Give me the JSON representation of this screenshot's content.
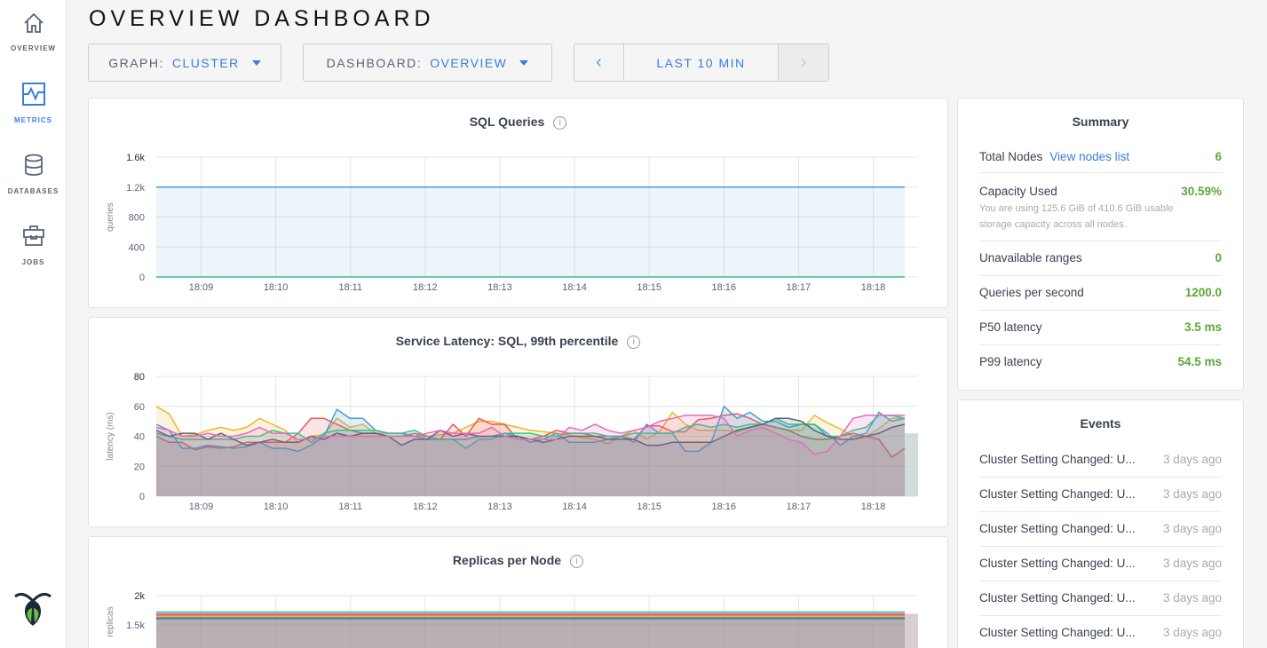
{
  "sidebar": {
    "items": [
      {
        "label": "OVERVIEW",
        "icon": "home-icon",
        "active": false
      },
      {
        "label": "METRICS",
        "icon": "metrics-icon",
        "active": true
      },
      {
        "label": "DATABASES",
        "icon": "database-icon",
        "active": false
      },
      {
        "label": "JOBS",
        "icon": "briefcase-icon",
        "active": false
      }
    ],
    "logo": "cockroach-logo"
  },
  "header": {
    "title": "OVERVIEW DASHBOARD"
  },
  "controls": {
    "graph_label": "GRAPH:",
    "graph_value": "CLUSTER",
    "dashboard_label": "DASHBOARD:",
    "dashboard_value": "OVERVIEW",
    "time_prev": "‹",
    "time_range": "LAST 10 MIN",
    "time_next": "›"
  },
  "colors": {
    "accent": "#3a7de1",
    "positive": "#5ba83a",
    "series": [
      "#f0b429",
      "#e8595a",
      "#4a9bd9",
      "#34c38f",
      "#5b6378",
      "#e56bbd"
    ]
  },
  "chart_data": [
    {
      "type": "area",
      "title": "SQL Queries",
      "ylabel": "queries",
      "yticks": [
        "0",
        "400",
        "800",
        "1.2k",
        "1.6k"
      ],
      "ylim": [
        0,
        1600
      ],
      "xticks": [
        "18:09",
        "18:10",
        "18:11",
        "18:12",
        "18:13",
        "18:14",
        "18:15",
        "18:16",
        "18:17",
        "18:18"
      ],
      "xlim": [
        "18:08:24",
        "18:18:36"
      ],
      "grid": true,
      "series": [
        {
          "color": "#4a9bd9",
          "values": [
            1200,
            1200
          ]
        },
        {
          "color": "#34c38f",
          "values": [
            0,
            0
          ]
        }
      ]
    },
    {
      "type": "line",
      "title": "Service Latency: SQL, 99th percentile",
      "ylabel": "latency (ms)",
      "yticks": [
        "0",
        "20",
        "40",
        "60",
        "80"
      ],
      "ylim": [
        0,
        80
      ],
      "xticks": [
        "18:09",
        "18:10",
        "18:11",
        "18:12",
        "18:13",
        "18:14",
        "18:15",
        "18:16",
        "18:17",
        "18:18"
      ],
      "xlim": [
        "18:08:24",
        "18:18:36"
      ],
      "grid": true,
      "series": [
        {
          "color": "#f0b429",
          "values": [
            60,
            55,
            40,
            41,
            44,
            46,
            44,
            46,
            52,
            48,
            44,
            36,
            40,
            41,
            52,
            46,
            48,
            42,
            42,
            42,
            40,
            40,
            41,
            42,
            46,
            50,
            50,
            48,
            46,
            44,
            43,
            42,
            41,
            39,
            38,
            35,
            40,
            44,
            38,
            43,
            56,
            48,
            44,
            44,
            44,
            43,
            46,
            48,
            46,
            44,
            44,
            54,
            49,
            45,
            40,
            40,
            45,
            52,
            52
          ]
        },
        {
          "color": "#e8595a",
          "values": [
            40,
            36,
            36,
            31,
            33,
            32,
            33,
            36,
            36,
            36,
            36,
            42,
            52,
            52,
            48,
            44,
            42,
            42,
            40,
            40,
            42,
            40,
            38,
            48,
            40,
            52,
            48,
            48,
            38,
            38,
            40,
            44,
            42,
            42,
            40,
            40,
            40,
            38,
            47,
            47,
            43,
            43,
            51,
            52,
            54,
            55,
            52,
            48,
            46,
            44,
            40,
            38,
            38,
            40,
            42,
            40,
            38,
            26,
            32
          ]
        },
        {
          "color": "#4a9bd9",
          "values": [
            48,
            44,
            32,
            32,
            34,
            33,
            32,
            33,
            36,
            32,
            32,
            30,
            34,
            40,
            58,
            52,
            52,
            44,
            42,
            42,
            40,
            38,
            38,
            38,
            38,
            40,
            40,
            42,
            40,
            36,
            38,
            42,
            36,
            36,
            36,
            38,
            40,
            36,
            48,
            42,
            42,
            30,
            30,
            36,
            60,
            52,
            56,
            50,
            50,
            46,
            48,
            48,
            42,
            34,
            40,
            42,
            56,
            50,
            52
          ]
        },
        {
          "color": "#34c38f",
          "values": [
            42,
            40,
            38,
            38,
            38,
            38,
            38,
            40,
            40,
            44,
            42,
            42,
            36,
            42,
            44,
            44,
            44,
            44,
            42,
            42,
            44,
            40,
            38,
            38,
            32,
            38,
            38,
            42,
            42,
            42,
            40,
            40,
            42,
            42,
            42,
            40,
            40,
            42,
            42,
            42,
            42,
            46,
            48,
            46,
            48,
            46,
            48,
            48,
            52,
            48,
            48,
            48,
            40,
            40,
            44,
            46,
            54,
            54,
            52
          ]
        },
        {
          "color": "#5b6378",
          "values": [
            44,
            40,
            42,
            42,
            38,
            42,
            38,
            34,
            36,
            38,
            36,
            36,
            40,
            38,
            42,
            40,
            42,
            42,
            40,
            34,
            38,
            38,
            44,
            40,
            42,
            40,
            40,
            40,
            40,
            38,
            36,
            38,
            40,
            40,
            40,
            38,
            38,
            38,
            34,
            34,
            36,
            36,
            36,
            36,
            40,
            44,
            46,
            48,
            52,
            52,
            50,
            44,
            40,
            38,
            38,
            40,
            42,
            46,
            48
          ]
        },
        {
          "color": "#e56bbd",
          "values": [
            46,
            44,
            40,
            40,
            42,
            40,
            40,
            42,
            46,
            42,
            42,
            38,
            38,
            40,
            40,
            40,
            40,
            40,
            40,
            40,
            40,
            42,
            44,
            42,
            42,
            42,
            46,
            40,
            38,
            38,
            38,
            38,
            46,
            44,
            48,
            44,
            42,
            44,
            46,
            50,
            52,
            54,
            54,
            54,
            52,
            40,
            44,
            46,
            42,
            38,
            36,
            28,
            30,
            40,
            52,
            54,
            54,
            54,
            54
          ]
        }
      ]
    },
    {
      "type": "line",
      "title": "Replicas per Node",
      "ylabel": "replicas",
      "yticks": [
        "1.5k",
        "2k"
      ],
      "ylim": [
        0,
        2000
      ],
      "xlim": [
        "18:08:24",
        "18:18:36"
      ],
      "grid": true,
      "series": [
        {
          "color": "#34c38f",
          "values": [
            1720,
            1720
          ]
        },
        {
          "color": "#e56bbd",
          "values": [
            1690,
            1690
          ]
        },
        {
          "color": "#e8595a",
          "values": [
            1670,
            1670
          ]
        },
        {
          "color": "#f0b429",
          "values": [
            1650,
            1650
          ]
        },
        {
          "color": "#5b6378",
          "values": [
            1620,
            1620
          ]
        },
        {
          "color": "#4a9bd9",
          "values": [
            1600,
            1600
          ]
        }
      ]
    }
  ],
  "summary": {
    "title": "Summary",
    "total_nodes_label": "Total Nodes",
    "view_nodes_link": "View nodes list",
    "total_nodes": "6",
    "capacity_label": "Capacity Used",
    "capacity_value": "30.59%",
    "capacity_note": "You are using 125.6 GiB of 410.6 GiB usable storage capacity across all nodes.",
    "unavailable_label": "Unavailable ranges",
    "unavailable_value": "0",
    "qps_label": "Queries per second",
    "qps_value": "1200.0",
    "p50_label": "P50 latency",
    "p50_value": "3.5 ms",
    "p99_label": "P99 latency",
    "p99_value": "54.5 ms"
  },
  "events": {
    "title": "Events",
    "items": [
      {
        "text": "Cluster Setting Changed: U...",
        "time": "3 days ago"
      },
      {
        "text": "Cluster Setting Changed: U...",
        "time": "3 days ago"
      },
      {
        "text": "Cluster Setting Changed: U...",
        "time": "3 days ago"
      },
      {
        "text": "Cluster Setting Changed: U...",
        "time": "3 days ago"
      },
      {
        "text": "Cluster Setting Changed: U...",
        "time": "3 days ago"
      },
      {
        "text": "Cluster Setting Changed: U...",
        "time": "3 days ago"
      }
    ]
  }
}
